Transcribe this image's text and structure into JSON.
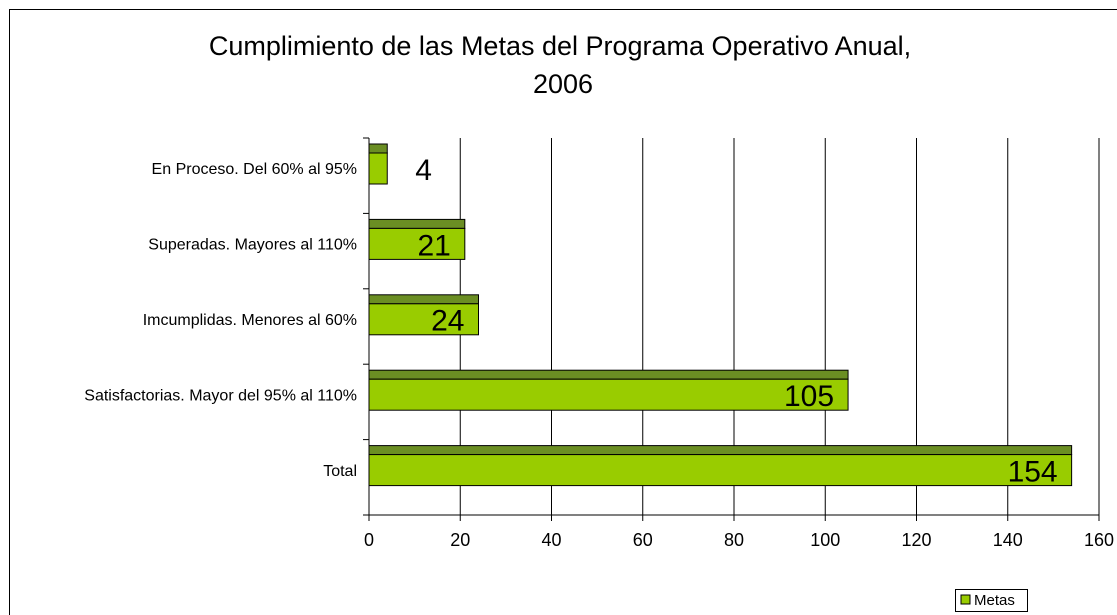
{
  "chart_data": {
    "type": "bar",
    "orientation": "horizontal",
    "title": [
      "Cumplimiento de las Metas del  Programa Operativo Anual,",
      "2006"
    ],
    "categories": [
      "En Proceso. Del 60% al 95%",
      "Superadas. Mayores al 110%",
      "Imcumplidas. Menores al 60%",
      "Satisfactorias. Mayor del 95% al 110%",
      "Total"
    ],
    "series": [
      {
        "name": "Metas",
        "color": "#99cc00",
        "values": [
          4,
          21,
          24,
          105,
          154
        ]
      }
    ],
    "xlim": [
      0,
      160
    ],
    "xticks": [
      0,
      20,
      40,
      60,
      80,
      100,
      120,
      140,
      160
    ],
    "grid": true,
    "legend": "bottom-right"
  }
}
